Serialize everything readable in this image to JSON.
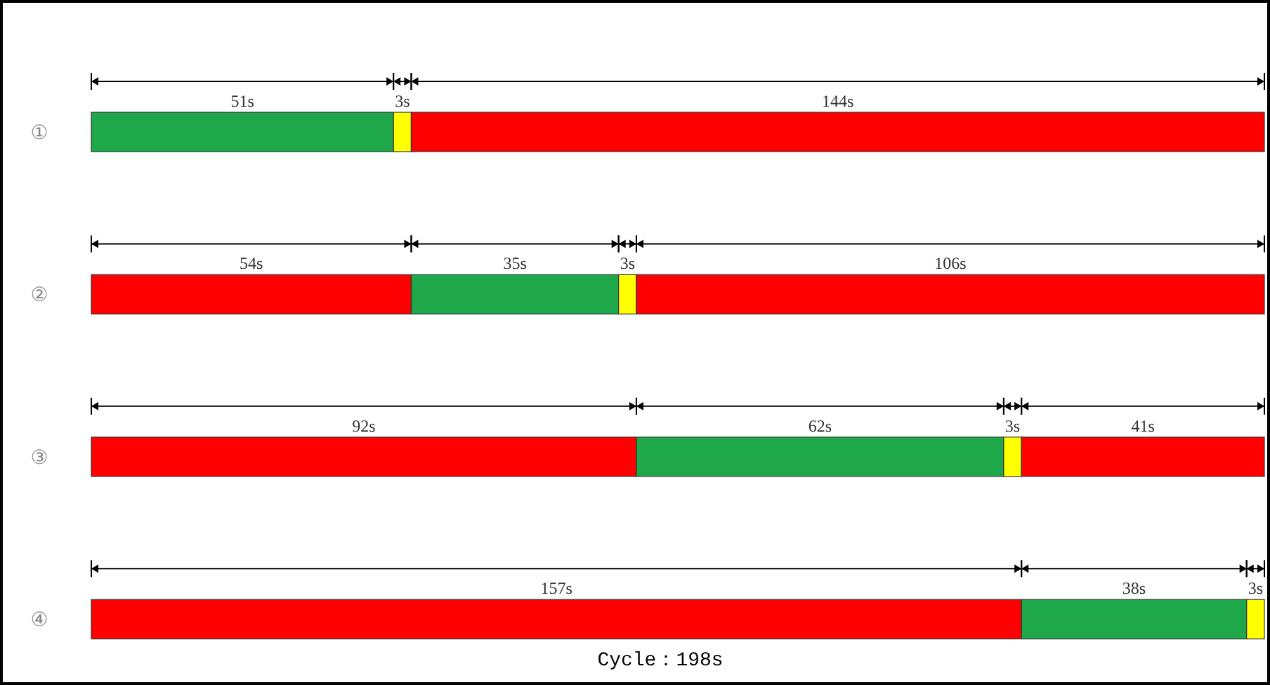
{
  "chart_data": {
    "type": "bar",
    "orientation": "horizontal",
    "stacked": true,
    "categories": [
      "①",
      "②",
      "③",
      "④"
    ],
    "series": [
      {
        "colors": [
          "#1ea84a",
          "#ff0000",
          "#ff0000",
          "#ff0000"
        ],
        "values": [
          51,
          54,
          92,
          157
        ],
        "value_labels": [
          "51s",
          "54s",
          "92s",
          "157s"
        ]
      },
      {
        "colors": [
          "#ffff00",
          "#1ea84a",
          "#1ea84a",
          "#1ea84a"
        ],
        "values": [
          3,
          35,
          62,
          38
        ],
        "value_labels": [
          "3s",
          "35s",
          "62s",
          "38s"
        ]
      },
      {
        "colors": [
          "#ff0000",
          "#ffff00",
          "#ffff00",
          "#ffff00"
        ],
        "values": [
          144,
          3,
          3,
          3
        ],
        "value_labels": [
          "144s",
          "3s",
          "3s",
          "3s"
        ]
      },
      {
        "color": "#ff0000",
        "values": [
          null,
          106,
          41,
          null
        ],
        "value_labels": [
          null,
          "106s",
          "41s",
          null
        ]
      }
    ],
    "annotations": [
      "Cycle：198s"
    ]
  }
}
